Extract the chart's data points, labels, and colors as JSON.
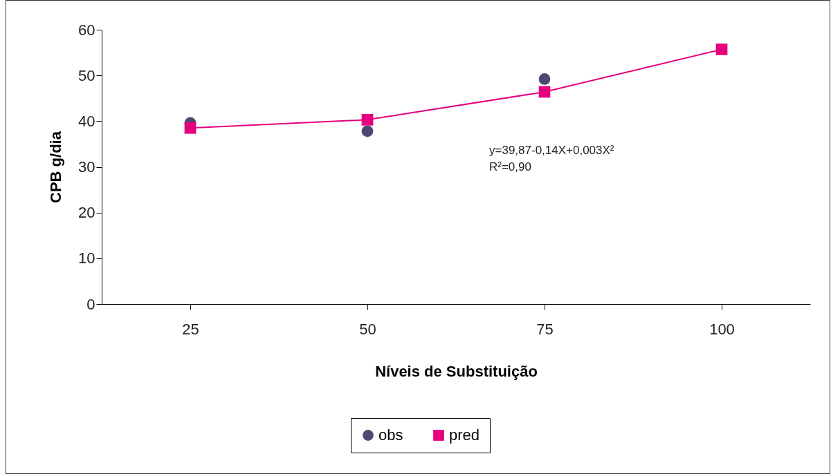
{
  "chart_data": {
    "type": "line",
    "xlabel": "Níveis de Substituição",
    "ylabel": "CPB g/dia",
    "categories": [
      "25",
      "50",
      "75",
      "100"
    ],
    "series": [
      {
        "name": "obs",
        "type": "scatter",
        "marker": "circle",
        "color": "#4b4a73",
        "values": [
          39.6,
          37.8,
          49.2,
          null
        ]
      },
      {
        "name": "pred",
        "marker": "square",
        "color": "#e6007e",
        "values": [
          38.5,
          40.3,
          46.4,
          55.7
        ]
      }
    ],
    "ylim": [
      0,
      60
    ],
    "yticks": [
      0,
      10,
      20,
      30,
      40,
      50,
      60
    ],
    "grid": false,
    "legend": "bottom",
    "annotations": [
      "y=39,87-0,14X+0,003X²",
      "R²=0,90"
    ]
  }
}
